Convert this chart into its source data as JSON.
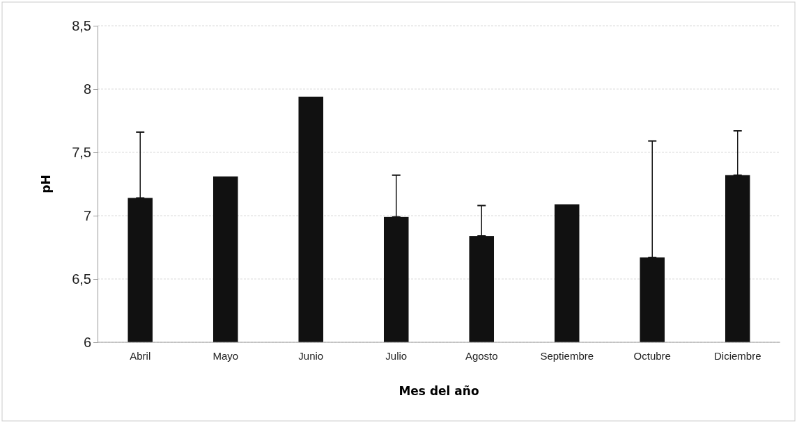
{
  "chart_data": {
    "type": "bar",
    "xlabel": "Mes del año",
    "ylabel": "pH",
    "categories": [
      "Abril",
      "Mayo",
      "Junio",
      "Julio",
      "Agosto",
      "Septiembre",
      "Octubre",
      "Diciembre"
    ],
    "values": [
      7.14,
      7.31,
      7.94,
      6.99,
      6.84,
      7.09,
      6.67,
      7.32
    ],
    "errors": [
      [
        7.14,
        7.66
      ],
      null,
      null,
      [
        6.99,
        7.32
      ],
      [
        6.84,
        7.08
      ],
      null,
      [
        6.67,
        7.59
      ],
      [
        7.32,
        7.67
      ]
    ],
    "color": "#111111",
    "ylim": [
      6,
      8.5
    ],
    "yticks": [
      6,
      {
        "value": 6.5,
        "label": "6,5"
      },
      7,
      {
        "value": 7.5,
        "label": "7,5"
      },
      8,
      {
        "value": 8.5,
        "label": "8,5"
      }
    ],
    "grid": "y"
  }
}
